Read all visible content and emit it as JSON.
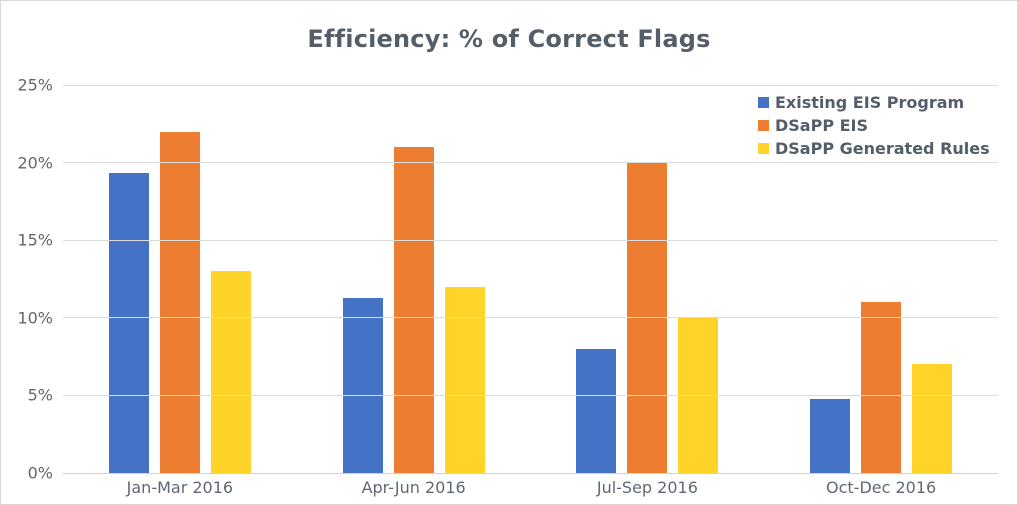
{
  "chart_data": {
    "type": "bar",
    "title": "Efficiency: % of Correct Flags",
    "categories": [
      "Jan-Mar 2016",
      "Apr-Jun 2016",
      "Jul-Sep 2016",
      "Oct-Dec 2016"
    ],
    "series": [
      {
        "name": "Existing EIS Program",
        "color": "#4472C4",
        "values": [
          19.3,
          11.3,
          8,
          4.8
        ]
      },
      {
        "name": "DSaPP EIS",
        "color": "#ED7D31",
        "values": [
          22,
          21,
          20,
          11
        ]
      },
      {
        "name": "DSaPP Generated Rules",
        "color": "#FFD328",
        "values": [
          13,
          12,
          10,
          7
        ]
      }
    ],
    "xlabel": "",
    "ylabel": "",
    "ylim": [
      0,
      25
    ],
    "yticks": [
      {
        "value": 0,
        "label": "0%"
      },
      {
        "value": 5,
        "label": "5%"
      },
      {
        "value": 10,
        "label": "10%"
      },
      {
        "value": 15,
        "label": "15%"
      },
      {
        "value": 20,
        "label": "20%"
      },
      {
        "value": 25,
        "label": "25%"
      }
    ],
    "grid": true,
    "legend_position": "top-right"
  },
  "colors": {
    "title_text": "#545E69",
    "axis_text": "#666666",
    "x_label_text": "#5F6975",
    "gridline": "#DDDDDD",
    "background": "#FFFFFF",
    "border": "#D9D9D9"
  }
}
